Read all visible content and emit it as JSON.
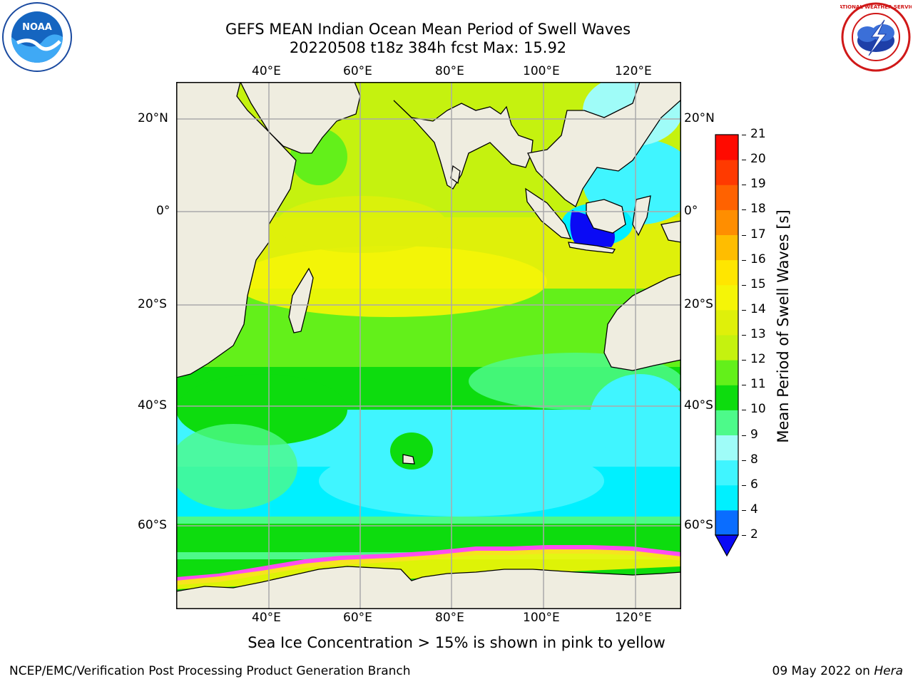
{
  "header": {
    "title_line1": "GEFS MEAN Indian Ocean Mean Period of Swell Waves",
    "title_line2": "20220508 t18z 384h fcst   Max: 15.92"
  },
  "logos": {
    "left": {
      "icon": "noaa-logo",
      "text": "NOAA",
      "ring_text": "NATIONAL OCEANIC AND ATMOSPHERIC ADMINISTRATION · U.S. DEPARTMENT OF COMMERCE"
    },
    "right": {
      "icon": "nws-logo",
      "ring_text": "NATIONAL WEATHER SERVICE"
    }
  },
  "map": {
    "lon_ticks": [
      "40°E",
      "60°E",
      "80°E",
      "100°E",
      "120°E"
    ],
    "lat_ticks": [
      "20°N",
      "0°",
      "20°S",
      "40°S",
      "60°S"
    ],
    "lon_range": [
      20,
      129
    ],
    "lat_range": [
      -79,
      26
    ],
    "gridlines": true
  },
  "colorbar": {
    "label": "Mean Period of Swell Waves [s]",
    "ticks": [
      "2",
      "4",
      "6",
      "8",
      "9",
      "10",
      "11",
      "12",
      "13",
      "14",
      "15",
      "16",
      "17",
      "18",
      "19",
      "20",
      "21"
    ],
    "colors": [
      "#0a6dff",
      "#00f0ff",
      "#40f5ff",
      "#9ffcf8",
      "#4dfa8a",
      "#0ddc0e",
      "#63f01a",
      "#c5f20f",
      "#dff00a",
      "#f5f507",
      "#ffe600",
      "#ffbd00",
      "#ff8e00",
      "#ff6200",
      "#ff3a00",
      "#ff0a00"
    ],
    "under_color": "#0a0af5"
  },
  "footer": {
    "caption": "Sea Ice Concentration > 15% is shown in pink to yellow",
    "credit": "NCEP/EMC/Verification Post Processing Product Generation Branch",
    "date": "09 May 2022 on",
    "machine": "Hera"
  }
}
